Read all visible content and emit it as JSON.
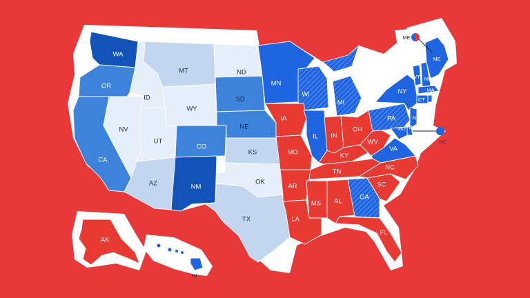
{
  "palette": {
    "background": "#e8393a",
    "paper": "#ffffff",
    "red": "#e63a33",
    "blue_dark": "#1353b9",
    "blue": "#1f64e0",
    "blue_mid": "#3d82db",
    "blue_light": "#c3d6ef",
    "blue_pale": "#e6eef9"
  },
  "states": {
    "WA": {
      "label": "WA",
      "shade": "blue_dark"
    },
    "OR": {
      "label": "OR",
      "shade": "blue_mid"
    },
    "CA": {
      "label": "CA",
      "shade": "blue_mid"
    },
    "NV": {
      "label": "NV",
      "shade": "blue_pale"
    },
    "ID": {
      "label": "ID",
      "shade": "blue_pale"
    },
    "MT": {
      "label": "MT",
      "shade": "blue_light"
    },
    "WY": {
      "label": "WY",
      "shade": "blue_pale"
    },
    "UT": {
      "label": "UT",
      "shade": "blue_pale"
    },
    "AZ": {
      "label": "AZ",
      "shade": "blue_light"
    },
    "CO": {
      "label": "CO",
      "shade": "blue_mid"
    },
    "NM": {
      "label": "NM",
      "shade": "blue_dark"
    },
    "ND": {
      "label": "ND",
      "shade": "blue_pale"
    },
    "SD": {
      "label": "SD",
      "shade": "blue_mid"
    },
    "NE": {
      "label": "NE",
      "shade": "blue_mid"
    },
    "KS": {
      "label": "KS",
      "shade": "blue_light"
    },
    "OK": {
      "label": "OK",
      "shade": "blue_pale"
    },
    "TX": {
      "label": "TX",
      "shade": "blue_light"
    },
    "MN": {
      "label": "MN",
      "shade": "blue"
    },
    "WI": {
      "label": "WI",
      "shade": "blue",
      "hatched": true
    },
    "MI": {
      "label": "MI",
      "shade": "blue",
      "hatched": true
    },
    "IA": {
      "label": "IA",
      "shade": "red"
    },
    "IL": {
      "label": "IL",
      "shade": "blue"
    },
    "MO": {
      "label": "MO",
      "shade": "red"
    },
    "AR": {
      "label": "AR",
      "shade": "red"
    },
    "LA": {
      "label": "LA",
      "shade": "red"
    },
    "IN": {
      "label": "IN",
      "shade": "red"
    },
    "OH": {
      "label": "OH",
      "shade": "red"
    },
    "KY": {
      "label": "KY",
      "shade": "red"
    },
    "TN": {
      "label": "TN",
      "shade": "red"
    },
    "MS": {
      "label": "MS",
      "shade": "red"
    },
    "AL": {
      "label": "AL",
      "shade": "red"
    },
    "GA": {
      "label": "GA",
      "shade": "blue",
      "hatched": true
    },
    "FL": {
      "label": "FL",
      "shade": "red"
    },
    "SC": {
      "label": "SC",
      "shade": "red"
    },
    "NC": {
      "label": "NC",
      "shade": "red"
    },
    "VA": {
      "label": "VA",
      "shade": "blue"
    },
    "WV": {
      "label": "WV",
      "shade": "red"
    },
    "PA": {
      "label": "PA",
      "shade": "blue",
      "hatched": true
    },
    "NY": {
      "label": "NY",
      "shade": "blue"
    },
    "VT": {
      "label": "VT",
      "shade": "blue"
    },
    "NH": {
      "label": "NH",
      "shade": "blue"
    },
    "ME": {
      "label": "ME",
      "shade": "blue"
    },
    "MA": {
      "label": "MA",
      "shade": "blue"
    },
    "CT": {
      "label": "CT",
      "shade": "blue"
    },
    "RI": {
      "label": "RI",
      "shade": "blue"
    },
    "NJ": {
      "label": "NJ",
      "shade": "blue"
    },
    "DE": {
      "label": "DE",
      "shade": "blue"
    },
    "MD": {
      "label": "MD",
      "shade": "blue"
    },
    "AK": {
      "label": "AK",
      "shade": "red"
    },
    "HI": {
      "label": "HI",
      "shade": "blue"
    }
  },
  "callouts": {
    "ME": {
      "label": "ME",
      "split": [
        "blue",
        "red"
      ]
    },
    "DC": {
      "label": "DC",
      "shade": "blue"
    }
  }
}
